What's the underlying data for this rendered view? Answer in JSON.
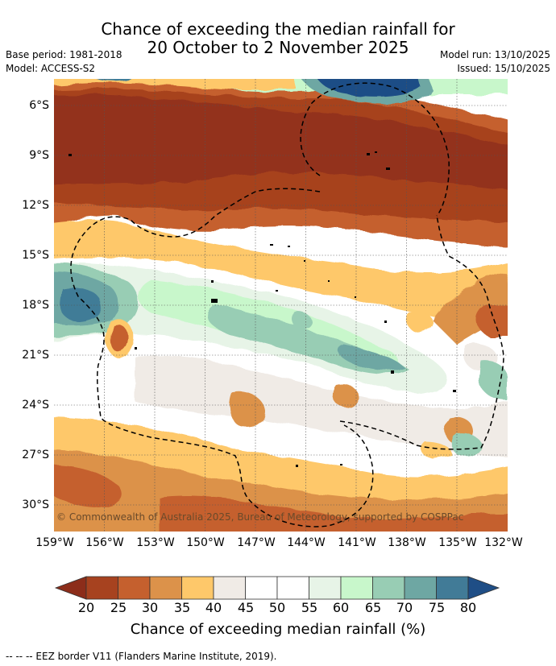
{
  "title": {
    "line1": "Chance of exceeding the median rainfall for",
    "line2": "20 October to 2 November 2025"
  },
  "meta": {
    "base_period": "Base period: 1981-2018",
    "model": "Model: ACCESS-S2",
    "model_run": "Model run: 13/10/2025",
    "issued": "Issued: 15/10/2025"
  },
  "axes": {
    "y_ticks": [
      "6°S",
      "9°S",
      "12°S",
      "15°S",
      "18°S",
      "21°S",
      "24°S",
      "27°S",
      "30°S"
    ],
    "x_ticks": [
      "159°W",
      "156°W",
      "153°W",
      "150°W",
      "147°W",
      "144°W",
      "141°W",
      "138°W",
      "135°W",
      "132°W"
    ]
  },
  "copyright": "© Commonwealth of Australia 2025, Bureau of Meteorology, supported by COSPPac",
  "colorbar": {
    "ticks": [
      "20",
      "25",
      "30",
      "35",
      "40",
      "45",
      "50",
      "55",
      "60",
      "65",
      "70",
      "75",
      "80"
    ],
    "colors": [
      "#a7421f",
      "#c5602e",
      "#dc924a",
      "#fec86a",
      "#f0ebe6",
      "#ffffff",
      "#ffffff",
      "#e7f4e7",
      "#c8f7cb",
      "#98cdb4",
      "#6ea7a3",
      "#417b97"
    ],
    "under_color": "#8c2d1a",
    "over_color": "#1f4e86",
    "label": "Chance of exceeding median rainfall (%)"
  },
  "legend_note": "--  --  -- EEZ border V11 (Flanders Marine Institute, 2019).",
  "colors": {
    "deep_brown": "#93321f",
    "rust": "#a7421f",
    "orange_brown": "#c5602e",
    "orange": "#dc924a",
    "yellow": "#fec86a",
    "beige": "#f0ebe6",
    "white": "#ffffff",
    "pale_green": "#e7f4e7",
    "light_green": "#c8f7cb",
    "sea_green": "#98cdb4",
    "teal": "#6ea7a3",
    "steel_blue": "#417b97",
    "navy": "#1f4e86"
  }
}
